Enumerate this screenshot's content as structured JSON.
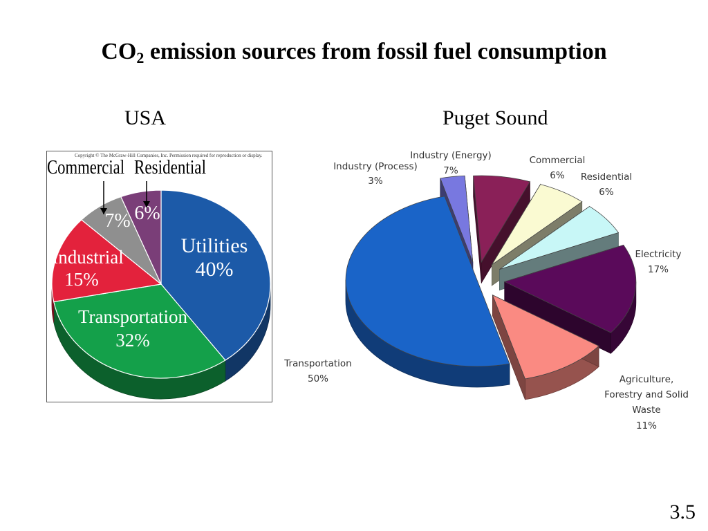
{
  "slide": {
    "title_main": "CO",
    "title_sub": "2",
    "title_rest": " emission sources from fossil fuel consumption",
    "page_number": "3.5"
  },
  "usa_chart": {
    "heading": "USA",
    "copyright": "Copyright © The McGraw-Hill Companies, Inc. Permission required for reproduction or display."
  },
  "puget_chart": {
    "heading": "Puget Sound"
  },
  "chart_data": [
    {
      "type": "pie",
      "title": "USA",
      "categories": [
        "Utilities",
        "Transportation",
        "Industrial",
        "Commercial",
        "Residential"
      ],
      "values": [
        40,
        32,
        15,
        7,
        6
      ],
      "labels": [
        "40%",
        "32%",
        "15%",
        "7%",
        "6%"
      ],
      "colors": [
        "#1c5aa8",
        "#14a04a",
        "#e3223c",
        "#8f8f8f",
        "#7a3e78"
      ]
    },
    {
      "type": "pie",
      "title": "Puget Sound",
      "categories": [
        "Transportation",
        "Industry (Process)",
        "Industry (Energy)",
        "Commercial",
        "Residential",
        "Electricity",
        "Agriculture, Forestry and Solid Waste"
      ],
      "values": [
        50,
        3,
        7,
        6,
        6,
        17,
        11
      ],
      "labels": [
        "50%",
        "3%",
        "7%",
        "6%",
        "6%",
        "17%",
        "11%"
      ],
      "colors": [
        "#1a64c8",
        "#7878e0",
        "#8a2058",
        "#fafad2",
        "#c8f7f7",
        "#5a0a5a",
        "#fa8a82"
      ]
    }
  ]
}
